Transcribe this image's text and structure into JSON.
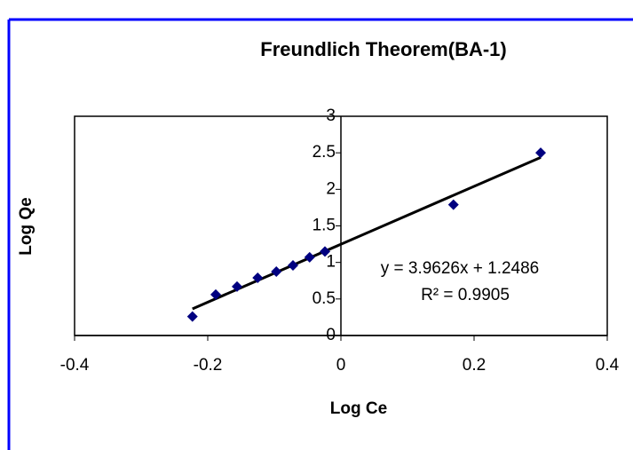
{
  "chart_data": {
    "type": "scatter",
    "title": "Freundlich Theorem(BA-1)",
    "x_label": "Log Ce",
    "y_label": "Log Qe",
    "series": [
      {
        "name": "Log Qe",
        "color": "#000080",
        "x": [
          -0.223,
          -0.188,
          -0.156,
          -0.125,
          -0.097,
          -0.072,
          -0.047,
          -0.024,
          0.169,
          0.3
        ],
        "values": [
          0.26,
          0.56,
          0.67,
          0.79,
          0.875,
          0.96,
          1.07,
          1.15,
          1.79,
          2.5
        ]
      }
    ],
    "trendline": {
      "slope": 3.9626,
      "intercept": 1.2486,
      "color": "#000000",
      "equation": "y = 3.9626x + 1.2486",
      "r_squared": "R² = 0.9905"
    },
    "xlim": [
      -0.4,
      0.4
    ],
    "xticks": [
      -0.4,
      -0.2,
      0,
      0.2,
      0.4
    ],
    "ylim": [
      0,
      3
    ],
    "yticks": [
      0,
      0.5,
      1,
      1.5,
      2,
      2.5,
      3
    ],
    "grid": false
  }
}
